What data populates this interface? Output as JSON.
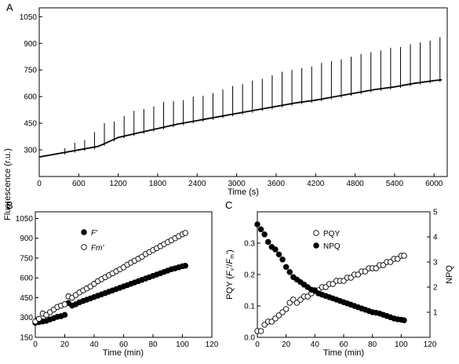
{
  "figure": {
    "panels": [
      {
        "id": "A",
        "label": "A"
      },
      {
        "id": "B",
        "label": "B"
      },
      {
        "id": "C",
        "label": "C"
      }
    ]
  },
  "chart_data": [
    {
      "panel": "A",
      "type": "line",
      "title": "",
      "xlabel": "Time (s)",
      "ylabel": "",
      "xlim": [
        0,
        6200
      ],
      "ylim": [
        150,
        1100
      ],
      "x_ticks": [
        0,
        600,
        1200,
        1800,
        2400,
        3000,
        3600,
        4200,
        4800,
        5400,
        6000
      ],
      "y_ticks": [
        300,
        450,
        600,
        750,
        900,
        1050
      ],
      "grid": false,
      "series": [
        {
          "name": "",
          "style": "trace",
          "color": "#000000",
          "x": [
            0,
            300,
            600,
            900,
            1200,
            1500,
            1800,
            2100,
            2400,
            2700,
            3000,
            3300,
            3600,
            3900,
            4200,
            4500,
            4800,
            5100,
            5400,
            5700,
            6000,
            6120
          ],
          "y": [
            260,
            280,
            300,
            320,
            370,
            395,
            420,
            445,
            465,
            485,
            505,
            525,
            545,
            565,
            580,
            600,
            620,
            640,
            655,
            675,
            690,
            695
          ]
        }
      ],
      "spike_times": [
        390,
        540,
        690,
        840,
        990,
        1140,
        1290,
        1440,
        1590,
        1740,
        1890,
        2040,
        2190,
        2340,
        2490,
        2640,
        2790,
        2940,
        3090,
        3240,
        3390,
        3540,
        3690,
        3840,
        3990,
        4140,
        4290,
        4440,
        4590,
        4740,
        4890,
        5040,
        5190,
        5340,
        5490,
        5640,
        5790,
        5940,
        6090
      ],
      "spike_peaks": [
        310,
        340,
        355,
        400,
        450,
        460,
        490,
        520,
        530,
        545,
        570,
        575,
        580,
        600,
        605,
        620,
        640,
        660,
        670,
        690,
        700,
        720,
        740,
        750,
        760,
        770,
        790,
        800,
        810,
        825,
        840,
        850,
        860,
        875,
        880,
        895,
        905,
        915,
        935
      ]
    },
    {
      "panel": "B",
      "type": "scatter",
      "title": "",
      "xlabel": "Time (min)",
      "ylabel": "Fluorescence (r.u.)",
      "xlim": [
        0,
        120
      ],
      "ylim": [
        150,
        1100
      ],
      "x_ticks": [
        0,
        20,
        40,
        60,
        80,
        100,
        120
      ],
      "y_ticks": [
        150,
        300,
        450,
        600,
        750,
        900,
        1050
      ],
      "grid": false,
      "legend_position": "upper-left",
      "series": [
        {
          "name": "F'",
          "marker": "filled-circle",
          "x": [
            0,
            2.5,
            5,
            7.5,
            10,
            12.5,
            15,
            17.5,
            20,
            22.5,
            25,
            27.5,
            30,
            32.5,
            35,
            37.5,
            40,
            42.5,
            45,
            47.5,
            50,
            52.5,
            55,
            57.5,
            60,
            62.5,
            65,
            67.5,
            70,
            72.5,
            75,
            77.5,
            80,
            82.5,
            85,
            87.5,
            90,
            92.5,
            95,
            97.5,
            100,
            102
          ],
          "y": [
            260,
            265,
            270,
            275,
            285,
            295,
            305,
            310,
            320,
            410,
            390,
            400,
            415,
            425,
            435,
            445,
            455,
            465,
            475,
            485,
            495,
            505,
            515,
            525,
            535,
            545,
            555,
            565,
            575,
            585,
            595,
            605,
            615,
            625,
            635,
            645,
            655,
            665,
            672,
            680,
            688,
            692
          ]
        },
        {
          "name": "Fm'",
          "marker": "open-circle",
          "x": [
            0,
            2.5,
            5,
            7.5,
            10,
            12.5,
            15,
            17.5,
            20,
            22.5,
            25,
            27.5,
            30,
            32.5,
            35,
            37.5,
            40,
            42.5,
            45,
            47.5,
            50,
            52.5,
            55,
            57.5,
            60,
            62.5,
            65,
            67.5,
            70,
            72.5,
            75,
            77.5,
            80,
            82.5,
            85,
            87.5,
            90,
            92.5,
            95,
            97.5,
            100,
            102
          ],
          "y": [
            270,
            290,
            330,
            320,
            340,
            360,
            380,
            390,
            400,
            460,
            450,
            470,
            490,
            505,
            520,
            535,
            555,
            575,
            590,
            605,
            620,
            635,
            650,
            665,
            680,
            700,
            715,
            730,
            745,
            760,
            780,
            795,
            810,
            825,
            840,
            855,
            870,
            885,
            900,
            915,
            930,
            940
          ]
        }
      ]
    },
    {
      "panel": "C",
      "type": "scatter",
      "title": "",
      "xlabel": "Time (min)",
      "ylabel_left": "PQY (Fv'/Fm')",
      "ylabel_right": "NPQ",
      "xlim": [
        0,
        120
      ],
      "ylim_left": [
        0,
        0.4
      ],
      "ylim_right": [
        0,
        5
      ],
      "x_ticks": [
        0,
        20,
        40,
        60,
        80,
        100,
        120
      ],
      "y_ticks_left": [
        0.0,
        0.1,
        0.2,
        0.3
      ],
      "y_ticks_right": [
        1,
        2,
        3,
        4,
        5
      ],
      "grid": false,
      "legend_position": "upper-center",
      "series": [
        {
          "name": "PQY",
          "marker": "open-circle",
          "axis": "left",
          "x": [
            0,
            2.5,
            5,
            7.5,
            10,
            12.5,
            15,
            17.5,
            20,
            22.5,
            25,
            27.5,
            30,
            32.5,
            35,
            37.5,
            40,
            42.5,
            45,
            47.5,
            50,
            52.5,
            55,
            57.5,
            60,
            62.5,
            65,
            67.5,
            70,
            72.5,
            75,
            77.5,
            80,
            82.5,
            85,
            87.5,
            90,
            92.5,
            95,
            97.5,
            100,
            102
          ],
          "y": [
            0.02,
            0.02,
            0.04,
            0.05,
            0.05,
            0.06,
            0.07,
            0.08,
            0.09,
            0.11,
            0.12,
            0.11,
            0.12,
            0.13,
            0.13,
            0.14,
            0.15,
            0.15,
            0.16,
            0.16,
            0.17,
            0.17,
            0.18,
            0.18,
            0.18,
            0.19,
            0.19,
            0.2,
            0.2,
            0.21,
            0.21,
            0.22,
            0.22,
            0.22,
            0.23,
            0.23,
            0.24,
            0.24,
            0.25,
            0.25,
            0.26,
            0.26
          ]
        },
        {
          "name": "NPQ",
          "marker": "filled-circle",
          "axis": "right",
          "x": [
            0,
            2.5,
            5,
            7.5,
            10,
            12.5,
            15,
            17.5,
            20,
            22.5,
            25,
            27.5,
            30,
            32.5,
            35,
            37.5,
            40,
            42.5,
            45,
            47.5,
            50,
            52.5,
            55,
            57.5,
            60,
            62.5,
            65,
            67.5,
            70,
            72.5,
            75,
            77.5,
            80,
            82.5,
            85,
            87.5,
            90,
            92.5,
            95,
            97.5,
            100,
            102
          ],
          "y": [
            4.5,
            4.3,
            4.1,
            3.8,
            3.6,
            3.5,
            3.3,
            3.1,
            2.8,
            2.6,
            2.4,
            2.3,
            2.2,
            2.1,
            2.0,
            1.9,
            1.85,
            1.75,
            1.7,
            1.65,
            1.6,
            1.55,
            1.5,
            1.45,
            1.4,
            1.35,
            1.3,
            1.25,
            1.2,
            1.15,
            1.1,
            1.05,
            1.0,
            0.98,
            0.95,
            0.9,
            0.85,
            0.8,
            0.75,
            0.72,
            0.7,
            0.68
          ]
        }
      ]
    }
  ]
}
